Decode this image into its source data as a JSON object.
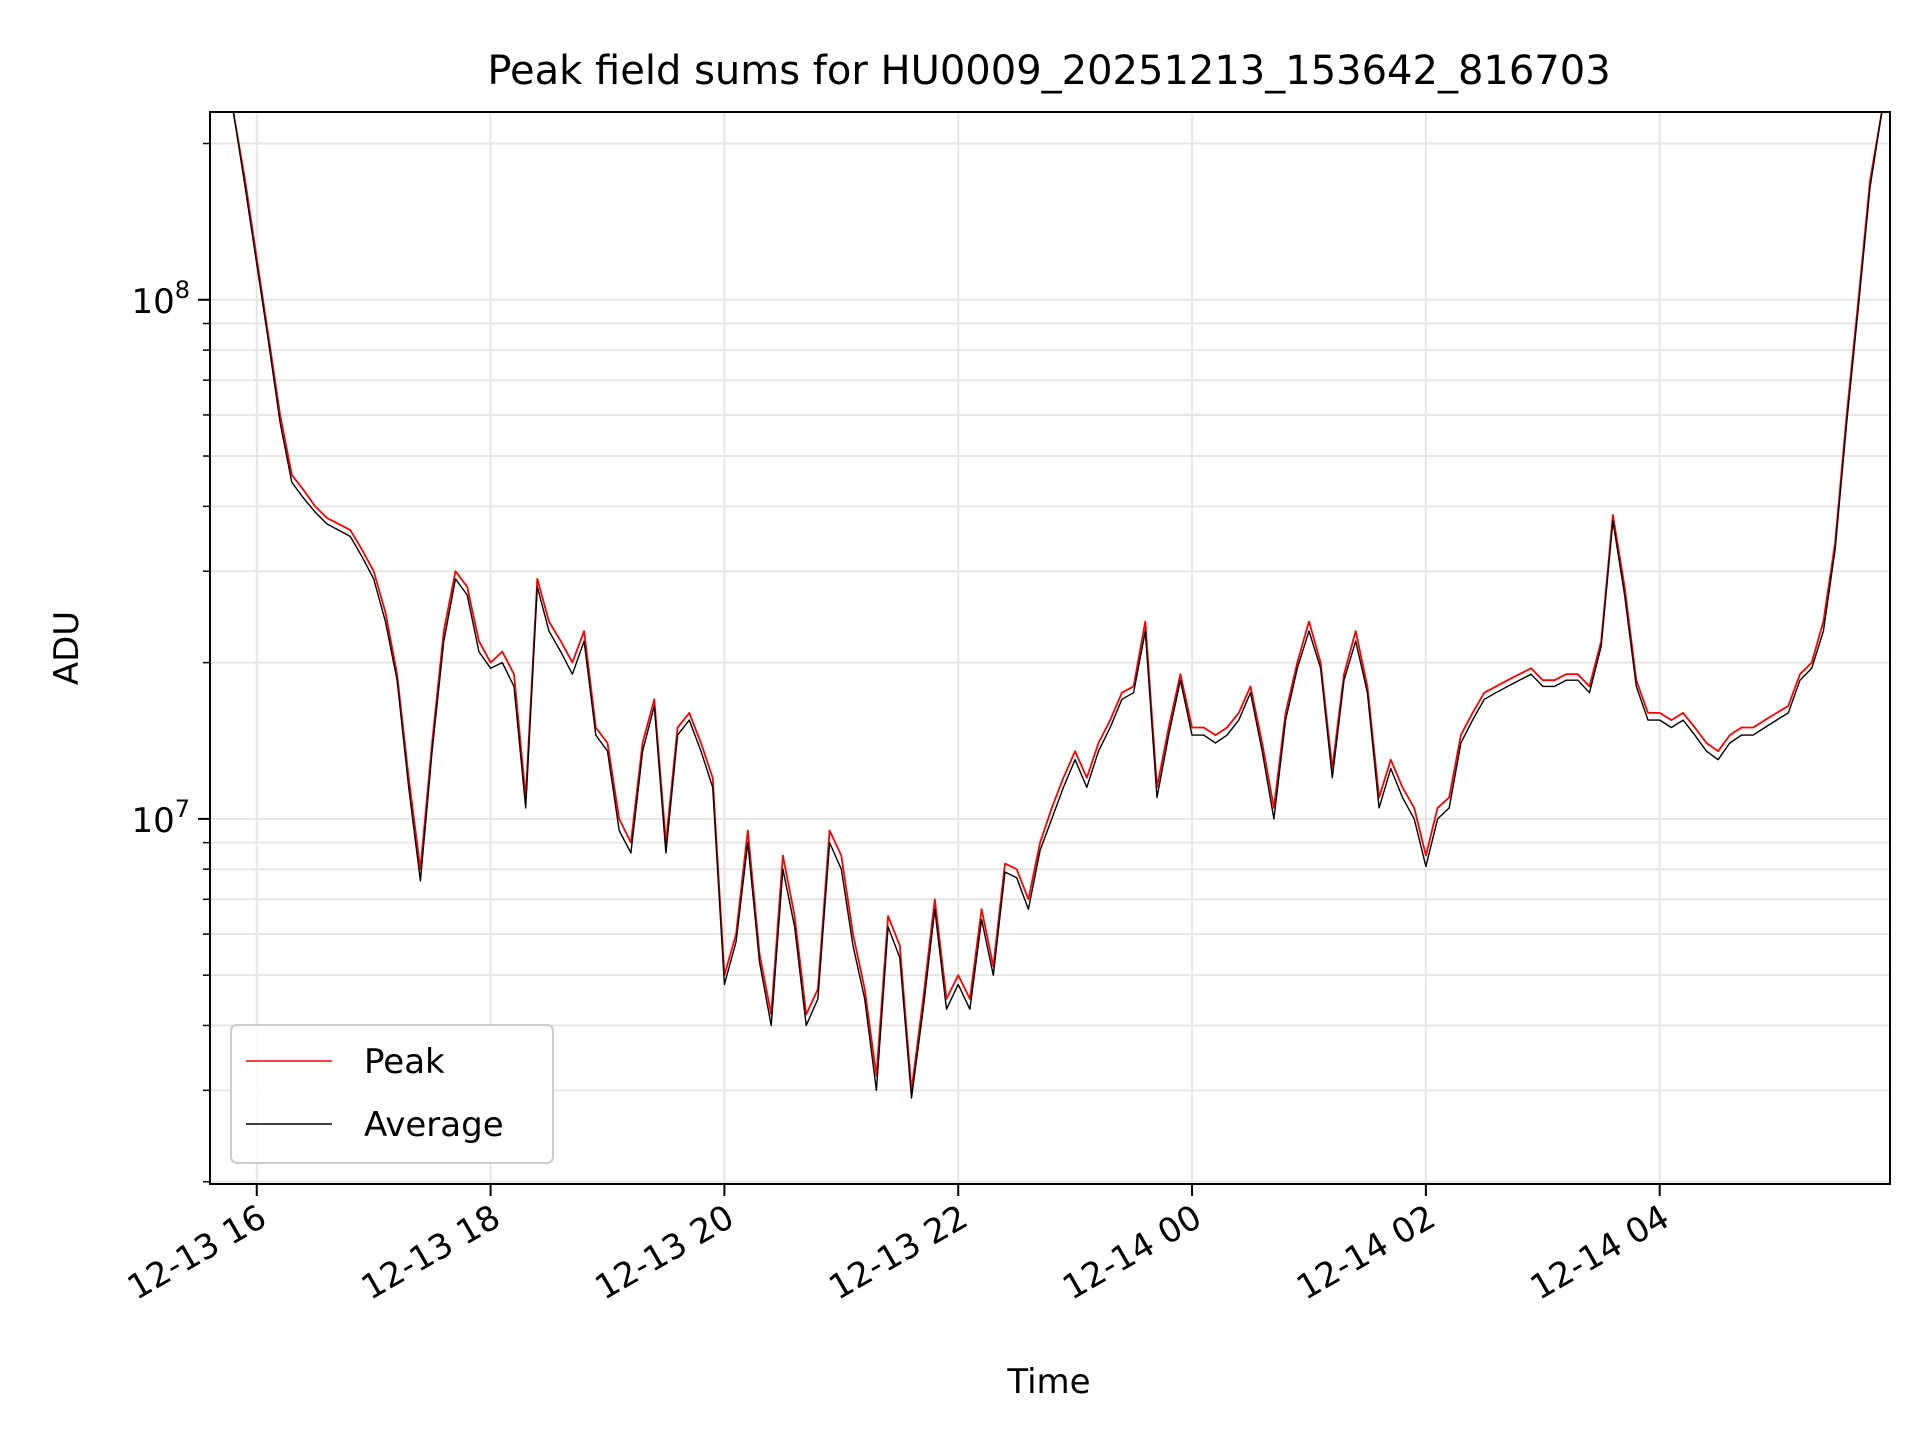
{
  "chart_data": {
    "type": "line",
    "title": "Peak field sums for HU0009_20251213_153642_816703",
    "xlabel": "Time",
    "ylabel": "ADU",
    "x_unit": "hours since 2025-12-13 00:00",
    "xlim": [
      15.6,
      29.97
    ],
    "yscale": "log",
    "ylim": [
      1980000.0,
      230000000.0
    ],
    "x_ticks": [
      {
        "value": 16,
        "label": "12-13 16"
      },
      {
        "value": 18,
        "label": "12-13 18"
      },
      {
        "value": 20,
        "label": "12-13 20"
      },
      {
        "value": 22,
        "label": "12-13 22"
      },
      {
        "value": 24,
        "label": "12-14 00"
      },
      {
        "value": 26,
        "label": "12-14 02"
      },
      {
        "value": 28,
        "label": "12-14 04"
      }
    ],
    "y_major_ticks": [
      {
        "value": 10000000,
        "base": "10",
        "exp": "7"
      },
      {
        "value": 100000000,
        "base": "10",
        "exp": "8"
      }
    ],
    "grid": true,
    "legend_position": "lower-left",
    "x": [
      15.8,
      15.9,
      16.0,
      16.1,
      16.2,
      16.3,
      16.4,
      16.5,
      16.6,
      16.7,
      16.8,
      16.9,
      17.0,
      17.1,
      17.2,
      17.3,
      17.4,
      17.5,
      17.6,
      17.7,
      17.8,
      17.9,
      18.0,
      18.1,
      18.2,
      18.3,
      18.4,
      18.5,
      18.6,
      18.7,
      18.8,
      18.9,
      19.0,
      19.1,
      19.2,
      19.3,
      19.4,
      19.5,
      19.6,
      19.7,
      19.8,
      19.9,
      20.0,
      20.1,
      20.2,
      20.3,
      20.4,
      20.5,
      20.6,
      20.7,
      20.8,
      20.9,
      21.0,
      21.1,
      21.2,
      21.3,
      21.4,
      21.5,
      21.6,
      21.7,
      21.8,
      21.9,
      22.0,
      22.1,
      22.2,
      22.3,
      22.4,
      22.5,
      22.6,
      22.7,
      22.8,
      22.9,
      23.0,
      23.1,
      23.2,
      23.3,
      23.4,
      23.5,
      23.6,
      23.7,
      23.8,
      23.9,
      24.0,
      24.1,
      24.2,
      24.3,
      24.4,
      24.5,
      24.6,
      24.7,
      24.8,
      24.9,
      25.0,
      25.1,
      25.2,
      25.3,
      25.4,
      25.5,
      25.6,
      25.7,
      25.8,
      25.9,
      26.0,
      26.1,
      26.2,
      26.3,
      26.4,
      26.5,
      26.6,
      26.7,
      26.8,
      26.9,
      27.0,
      27.1,
      27.2,
      27.3,
      27.4,
      27.5,
      27.6,
      27.7,
      27.8,
      27.9,
      28.0,
      28.1,
      28.2,
      28.3,
      28.4,
      28.5,
      28.6,
      28.7,
      28.8,
      28.9,
      29.0,
      29.1,
      29.2,
      29.3,
      29.4,
      29.5,
      29.6,
      29.7,
      29.8,
      29.9
    ],
    "series": [
      {
        "name": "Peak",
        "color": "#ff0000",
        "values": [
          230000000,
          170000000,
          120000000,
          85000000,
          60000000,
          46000000,
          43000000,
          40000000,
          38000000,
          37000000,
          36000000,
          33000000,
          30000000,
          25000000,
          19000000,
          12000000,
          8000000,
          14000000,
          23000000,
          30000000,
          28000000,
          22000000,
          20000000,
          21000000,
          19000000,
          11000000,
          29000000,
          24000000,
          22000000,
          20000000,
          23000000,
          15000000,
          14000000,
          10000000,
          9000000,
          14000000,
          17000000,
          9000000,
          15000000,
          16000000,
          14000000,
          12000000,
          5000000,
          6000000,
          9500000,
          5500000,
          4200000,
          8500000,
          6500000,
          4200000,
          4700000,
          9500000,
          8500000,
          6000000,
          4700000,
          3200000,
          6500000,
          5700000,
          3000000,
          4500000,
          7000000,
          4500000,
          5000000,
          4500000,
          6700000,
          5200000,
          8200000,
          8000000,
          7000000,
          9000000,
          10500000,
          12000000,
          13500000,
          12000000,
          14000000,
          15500000,
          17500000,
          18000000,
          24000000,
          11500000,
          15000000,
          19000000,
          15000000,
          15000000,
          14500000,
          15000000,
          16000000,
          18000000,
          14000000,
          10500000,
          16000000,
          20000000,
          24000000,
          20000000,
          12500000,
          19000000,
          23000000,
          18000000,
          11000000,
          13000000,
          11500000,
          10500000,
          8500000,
          10500000,
          11000000,
          14500000,
          16000000,
          17500000,
          18000000,
          18500000,
          19000000,
          19500000,
          18500000,
          18500000,
          19000000,
          19000000,
          18000000,
          22000000,
          38500000,
          28000000,
          18500000,
          16000000,
          16000000,
          15500000,
          16000000,
          15000000,
          14000000,
          13500000,
          14500000,
          15000000,
          15000000,
          15500000,
          16000000,
          16500000,
          19000000,
          20000000,
          24000000,
          34000000,
          60000000,
          100000000,
          170000000,
          230000000
        ]
      },
      {
        "name": "Average",
        "color": "#000000",
        "values": [
          230000000,
          165000000,
          117000000,
          83000000,
          58000000,
          44500000,
          41500000,
          39000000,
          37000000,
          36000000,
          35000000,
          32000000,
          29000000,
          24000000,
          18500000,
          11500000,
          7600000,
          13500000,
          22000000,
          29000000,
          27000000,
          21000000,
          19500000,
          20000000,
          18000000,
          10500000,
          28000000,
          23000000,
          21000000,
          19000000,
          22000000,
          14500000,
          13500000,
          9500000,
          8600000,
          13500000,
          16500000,
          8600000,
          14500000,
          15500000,
          13500000,
          11500000,
          4800000,
          5800000,
          9000000,
          5300000,
          4000000,
          8000000,
          6200000,
          4000000,
          4500000,
          9000000,
          8000000,
          5700000,
          4500000,
          3000000,
          6200000,
          5400000,
          2900000,
          4300000,
          6700000,
          4300000,
          4800000,
          4300000,
          6400000,
          5000000,
          7900000,
          7700000,
          6700000,
          8700000,
          10000000,
          11500000,
          13000000,
          11500000,
          13500000,
          15000000,
          17000000,
          17500000,
          23000000,
          11000000,
          14500000,
          18500000,
          14500000,
          14500000,
          14000000,
          14500000,
          15500000,
          17500000,
          13500000,
          10000000,
          15500000,
          19500000,
          23000000,
          19500000,
          12000000,
          18500000,
          22000000,
          17500000,
          10500000,
          12500000,
          11000000,
          10000000,
          8100000,
          10000000,
          10500000,
          14000000,
          15500000,
          17000000,
          17500000,
          18000000,
          18500000,
          19000000,
          18000000,
          18000000,
          18500000,
          18500000,
          17500000,
          21500000,
          37500000,
          27000000,
          18000000,
          15500000,
          15500000,
          15000000,
          15500000,
          14500000,
          13500000,
          13000000,
          14000000,
          14500000,
          14500000,
          15000000,
          15500000,
          16000000,
          18500000,
          19500000,
          23000000,
          33000000,
          58000000,
          97000000,
          165000000,
          230000000
        ]
      }
    ]
  }
}
